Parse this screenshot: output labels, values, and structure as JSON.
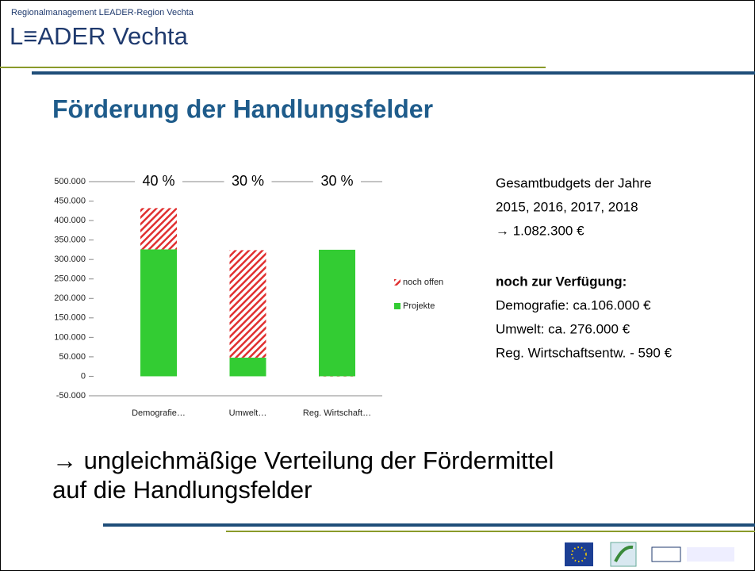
{
  "header": {
    "subtitle": "Regionalmanagement LEADER-Region Vechta",
    "logo": "L≡ADER Vechta"
  },
  "title": "Förderung der Handlungsfelder",
  "info": [
    "Gesamtbudgets der Jahre",
    "2015, 2016, 2017, 2018",
    "→ 1.082.300 €",
    "noch zur Verfügung:",
    "Demografie: ca.106.000 €",
    "Umwelt: ca. 276.000 €",
    "Reg. Wirtschaftsentw. - 590 €"
  ],
  "conclusion": [
    "→ ungleichmäßige Verteilung der Fördermittel",
    "auf die Handlungsfelder"
  ],
  "chart_data": {
    "type": "stacked_bar",
    "categories": [
      "Demografie…",
      "Umwelt…",
      "Reg. Wirtschaft…"
    ],
    "share_labels": [
      "40 %",
      "30 %",
      "30 %"
    ],
    "series": [
      {
        "name": "Projekte",
        "color": "#33cc33",
        "values": [
          326000,
          48000,
          325000
        ]
      },
      {
        "name": "noch offen",
        "color": "#e03030",
        "hatched": true,
        "values": [
          106000,
          276000,
          -590
        ]
      }
    ],
    "legend_order": [
      1,
      0
    ],
    "ylim": [
      -50000,
      500000
    ],
    "yticks": [
      {
        "value": -50000,
        "label": "-50.000"
      },
      0,
      {
        "value": 50000,
        "label": "50.000"
      },
      {
        "value": 100000,
        "label": "100.000"
      },
      {
        "value": 150000,
        "label": "150.000"
      },
      {
        "value": 200000,
        "label": "200.000"
      },
      {
        "value": 250000,
        "label": "250.000"
      },
      {
        "value": 300000,
        "label": "300.000"
      },
      {
        "value": 350000,
        "label": "350.000"
      },
      {
        "value": 400000,
        "label": "400.000"
      },
      {
        "value": 450000,
        "label": "450.000"
      },
      {
        "value": 500000,
        "label": "500.000"
      }
    ]
  }
}
